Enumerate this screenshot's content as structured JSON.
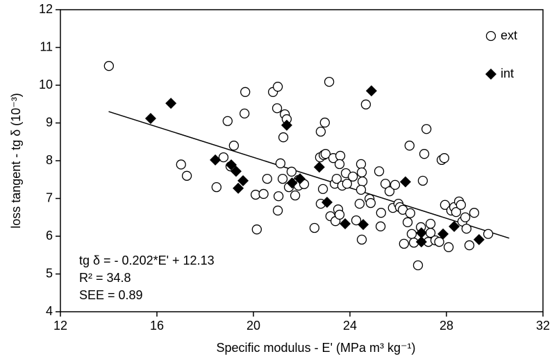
{
  "chart_data": {
    "type": "scatter",
    "xlabel": "Specific modulus - E' (MPa m³ kg⁻¹)",
    "ylabel": "loss tangent - tg δ (10⁻³)",
    "xlim": [
      12,
      32
    ],
    "xticks": [
      12,
      16,
      20,
      24,
      28,
      32
    ],
    "ylim": [
      4,
      12
    ],
    "yticks": [
      4,
      5,
      6,
      7,
      8,
      9,
      10,
      11,
      12
    ],
    "legend": "top-right",
    "annotations": [
      "tg δ = - 0.202*E' + 12.13",
      "R² = 34.8",
      "SEE = 0.89"
    ],
    "fit": {
      "slope": -0.202,
      "intercept": 12.13,
      "x_range": [
        14,
        30.6
      ],
      "color": "#000000"
    },
    "series": [
      {
        "name": "ext",
        "marker": "circle",
        "color": "#000000",
        "x": [
          14.01,
          17.0,
          17.24,
          18.47,
          18.76,
          18.93,
          19.05,
          19.19,
          19.63,
          19.66,
          20.09,
          20.14,
          20.42,
          20.57,
          20.81,
          21.01,
          21.01,
          21.04,
          20.98,
          21.12,
          21.24,
          21.21,
          21.3,
          21.38,
          21.47,
          21.58,
          21.73,
          21.87,
          21.87,
          22.1,
          22.53,
          22.76,
          22.79,
          22.91,
          22.96,
          22.99,
          22.88,
          22.79,
          23.19,
          23.14,
          23.4,
          23.31,
          23.37,
          23.45,
          23.51,
          23.6,
          23.57,
          23.68,
          23.83,
          23.88,
          23.57,
          24.12,
          24.26,
          24.46,
          24.49,
          24.52,
          24.46,
          24.4,
          24.49,
          24.66,
          24.81,
          24.86,
          25.21,
          25.27,
          25.29,
          25.47,
          25.64,
          25.78,
          25.87,
          26.01,
          26.07,
          26.19,
          26.24,
          26.47,
          26.39,
          26.56,
          26.65,
          26.5,
          26.82,
          26.94,
          27.02,
          27.08,
          27.17,
          27.25,
          27.34,
          27.54,
          27.8,
          27.91,
          27.94,
          28.09,
          28.2,
          28.32,
          28.4,
          28.52,
          28.6,
          28.66,
          28.78,
          28.83,
          28.95,
          29.15,
          29.73,
          27.34,
          27.7
        ],
        "values": [
          10.51,
          7.9,
          7.6,
          7.3,
          8.09,
          9.05,
          7.85,
          8.4,
          9.25,
          9.82,
          7.1,
          6.18,
          7.12,
          7.52,
          9.82,
          9.96,
          6.68,
          7.06,
          9.39,
          7.93,
          8.62,
          7.52,
          9.23,
          9.1,
          7.3,
          7.71,
          7.08,
          7.49,
          7.34,
          7.38,
          6.22,
          8.09,
          8.77,
          8.15,
          9.01,
          8.18,
          7.25,
          6.86,
          6.53,
          10.09,
          6.4,
          8.07,
          7.39,
          7.52,
          6.71,
          8.13,
          7.91,
          7.34,
          7.67,
          7.39,
          6.57,
          7.58,
          6.42,
          7.91,
          7.69,
          7.45,
          7.23,
          6.86,
          5.91,
          9.49,
          6.99,
          6.88,
          7.72,
          6.26,
          6.62,
          7.39,
          7.19,
          6.75,
          7.36,
          6.86,
          6.77,
          6.7,
          5.8,
          8.4,
          6.37,
          6.06,
          5.83,
          6.61,
          5.23,
          6.24,
          7.47,
          8.18,
          8.84,
          5.85,
          6.09,
          5.89,
          8.02,
          8.07,
          6.83,
          5.71,
          6.68,
          6.77,
          6.64,
          6.92,
          6.83,
          6.39,
          6.5,
          6.2,
          5.76,
          6.62,
          6.06,
          6.33,
          5.85
        ]
      },
      {
        "name": "int",
        "marker": "diamond",
        "color": "#000000",
        "x": [
          15.74,
          16.58,
          18.42,
          19.08,
          19.28,
          19.37,
          19.57,
          21.38,
          21.6,
          21.93,
          22.73,
          23.05,
          23.8,
          24.89,
          26.3,
          24.55,
          26.96,
          26.96,
          27.86,
          28.32,
          29.35
        ],
        "values": [
          9.12,
          9.52,
          8.02,
          7.89,
          7.72,
          7.27,
          7.47,
          8.94,
          7.41,
          7.52,
          7.83,
          6.9,
          6.33,
          9.85,
          7.44,
          6.31,
          6.09,
          5.85,
          6.06,
          6.26,
          5.91
        ]
      }
    ]
  }
}
